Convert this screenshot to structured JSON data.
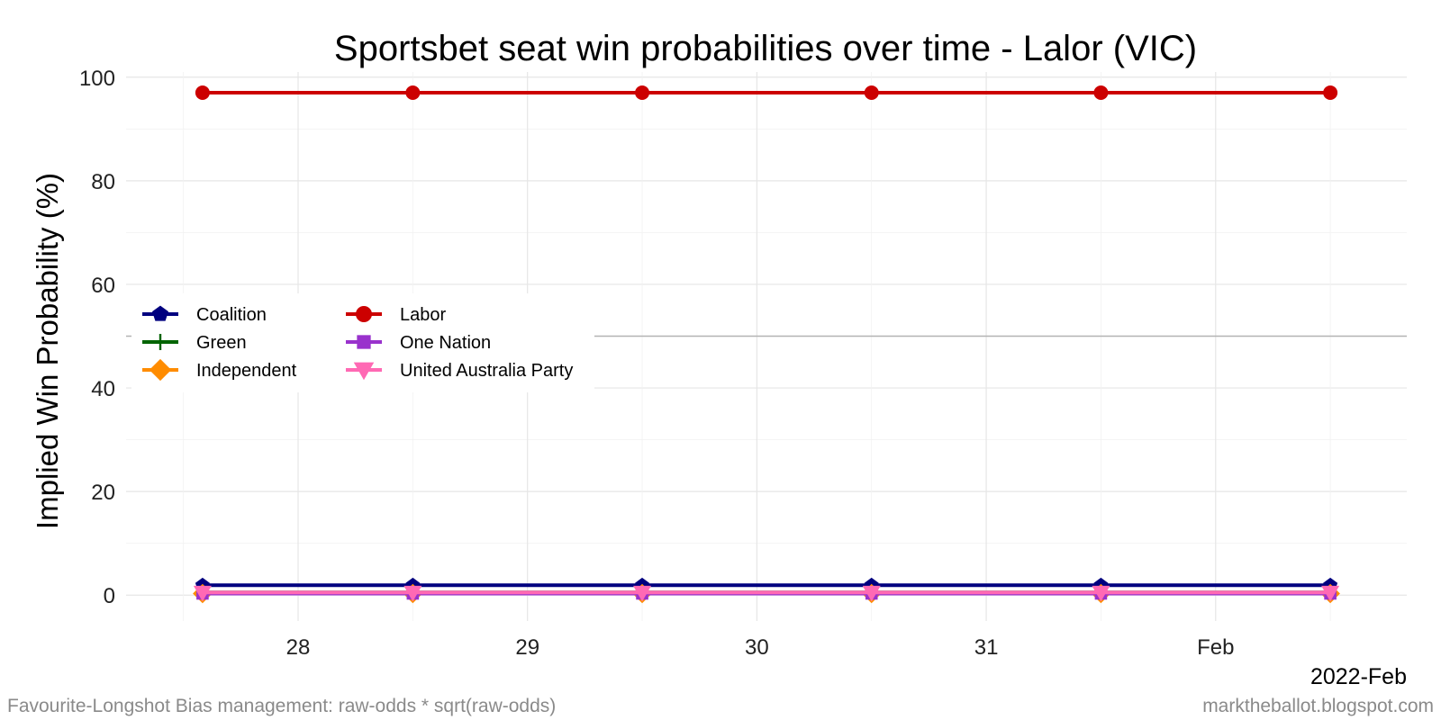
{
  "chart_data": {
    "type": "line",
    "title": "Sportsbet seat win probabilities over time - Lalor (VIC)",
    "xlabel": "",
    "ylabel": "Implied Win Probability (%)",
    "x_axis_type": "date",
    "x_date_label": "2022-Feb",
    "x_tick_labels": [
      "28",
      "29",
      "30",
      "31",
      "Feb"
    ],
    "x_tick_dates": [
      "2022-01-28",
      "2022-01-29",
      "2022-01-30",
      "2022-01-31",
      "2022-02-01"
    ],
    "x": [
      "2022-01-27 14:00",
      "2022-01-28 12:00",
      "2022-01-29 12:00",
      "2022-01-30 12:00",
      "2022-01-31 12:00",
      "2022-02-01 12:00"
    ],
    "xlim": [
      "2022-01-27 06:00",
      "2022-02-01 20:00"
    ],
    "ylim": [
      -5,
      101
    ],
    "y_ticks": [
      0,
      20,
      40,
      60,
      80,
      100
    ],
    "reference_line": 50,
    "grid": true,
    "legend_position": "left-middle",
    "series": [
      {
        "name": "Coalition",
        "color": "#00007f",
        "marker": "pentagon",
        "values": [
          1.9,
          1.9,
          1.9,
          1.9,
          1.9,
          1.9
        ]
      },
      {
        "name": "Labor",
        "color": "#cc0000",
        "marker": "circle",
        "values": [
          97,
          97,
          97,
          97,
          97,
          97
        ]
      },
      {
        "name": "Green",
        "color": "#006400",
        "marker": "plus",
        "values": [
          0.5,
          0.5,
          0.5,
          0.5,
          0.5,
          0.5
        ]
      },
      {
        "name": "One Nation",
        "color": "#9932cc",
        "marker": "square",
        "values": [
          0.3,
          0.3,
          0.3,
          0.3,
          0.3,
          0.3
        ]
      },
      {
        "name": "Independent",
        "color": "#ff8c00",
        "marker": "diamond",
        "values": [
          0.3,
          0.3,
          0.3,
          0.3,
          0.3,
          0.3
        ]
      },
      {
        "name": "United Australia Party",
        "color": "#ff69b4",
        "marker": "triangle-down",
        "values": [
          0.5,
          0.5,
          0.5,
          0.5,
          0.5,
          0.5
        ]
      }
    ]
  },
  "caption_left": "Favourite-Longshot Bias management: raw-odds * sqrt(raw-odds)",
  "caption_right": "marktheballot.blogspot.com"
}
